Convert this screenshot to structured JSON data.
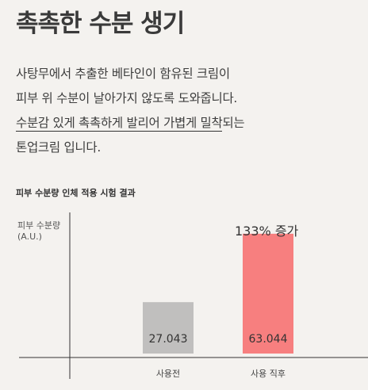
{
  "heading": {
    "title": "촉촉한 수분 생기"
  },
  "description": {
    "line1": "사탕무에서 추출한 베타인이 함유된 크림이",
    "line2": "피부 위 수분이 날아가지 않도록 도와줍니다.",
    "line3_underlined": "수분감 있게 촉촉하게 발리어 가볍게 밀착",
    "line3_rest": "되는",
    "line4": "톤업크림 입니다."
  },
  "chart_data": {
    "type": "bar",
    "title": "피부 수분량 인체 적용 시험 결과",
    "ylabel_line1": "피부 수분량",
    "ylabel_line2": "(A.U.)",
    "categories": [
      "사용전",
      "사용 직후"
    ],
    "values": [
      27.043,
      63.044
    ],
    "value_labels": [
      "27.043",
      "63.044"
    ],
    "colors": [
      "#c0bfbe",
      "#f77f7f"
    ],
    "annotation": "133% 증가",
    "ylim": [
      0,
      68
    ],
    "grid": false,
    "legend": "none"
  }
}
